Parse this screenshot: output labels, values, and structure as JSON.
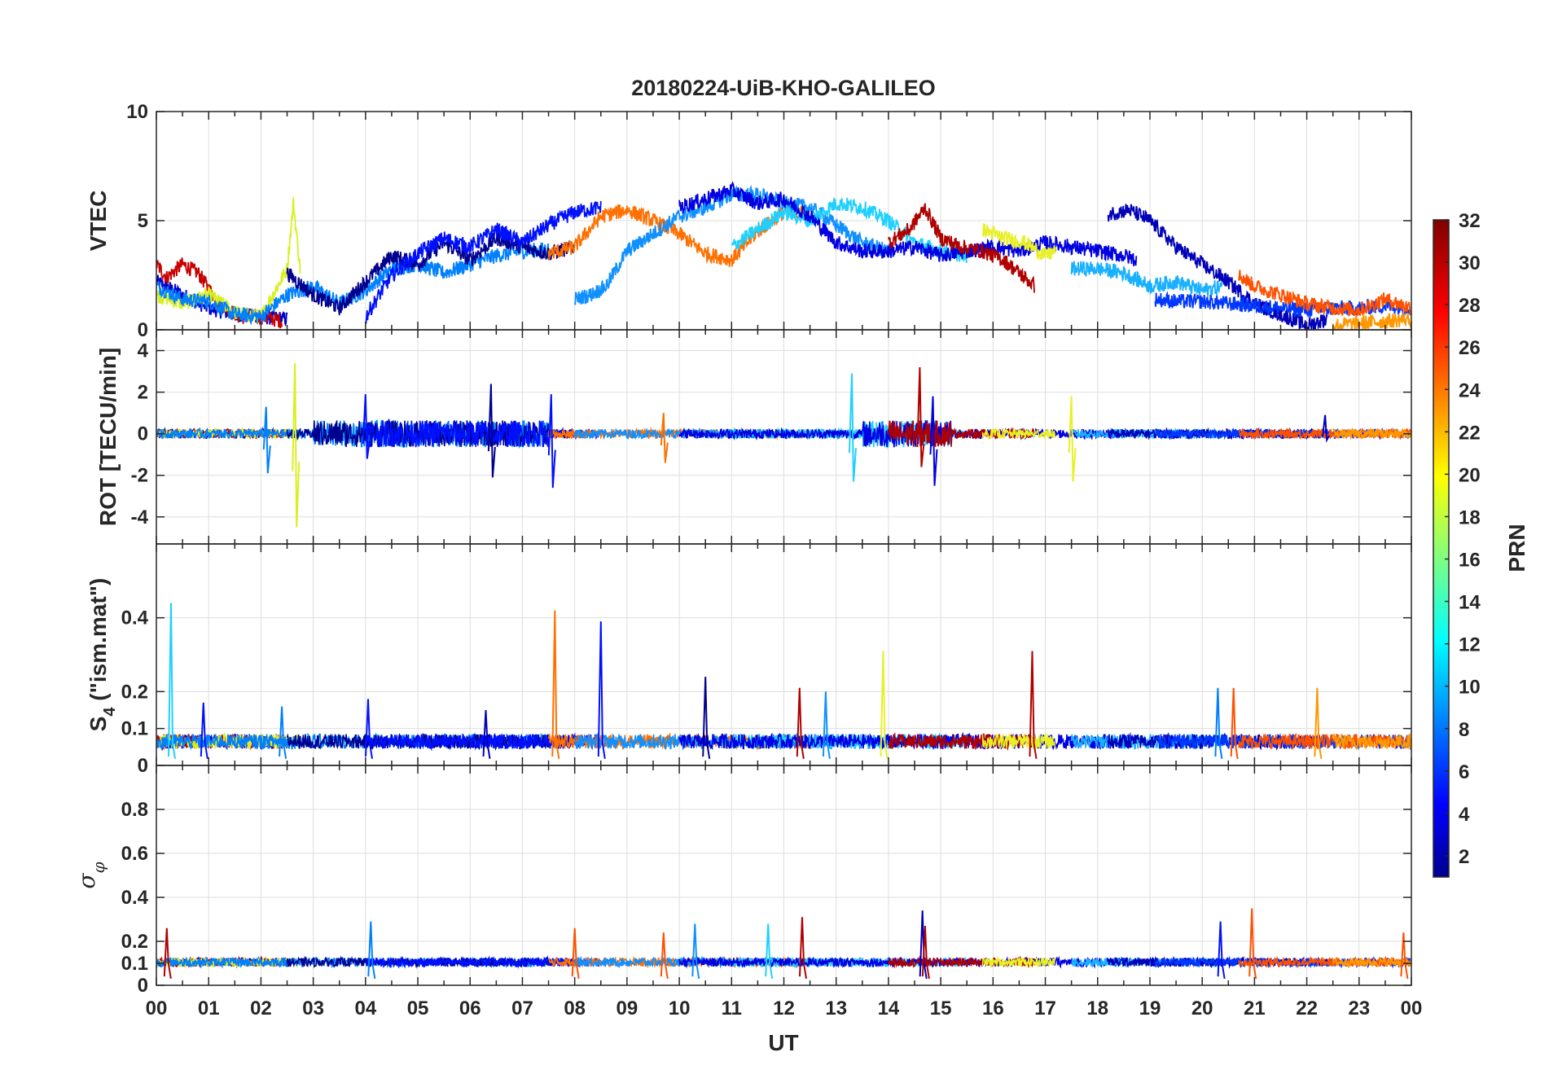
{
  "chart_data": {
    "type": "line",
    "title": "20180224-UiB-KHO-GALILEO",
    "xlabel": "UT",
    "x_tick_labels": [
      "00",
      "01",
      "02",
      "03",
      "04",
      "05",
      "06",
      "07",
      "08",
      "09",
      "10",
      "11",
      "12",
      "13",
      "14",
      "15",
      "16",
      "17",
      "18",
      "19",
      "20",
      "21",
      "22",
      "23",
      "00"
    ],
    "xlim_hours": [
      0,
      24
    ],
    "colorbar": {
      "label": "PRN",
      "range": [
        1,
        32
      ],
      "tick_labels": [
        "2",
        "4",
        "6",
        "8",
        "10",
        "12",
        "14",
        "16",
        "18",
        "20",
        "22",
        "24",
        "26",
        "28",
        "30",
        "32"
      ],
      "colormap": "jet"
    },
    "panels": [
      {
        "id": "vtec",
        "ylabel": "VTEC",
        "ylim": [
          0,
          10
        ],
        "tick_labels": [
          "0",
          "5",
          "10"
        ],
        "tick_values": [
          0,
          5,
          10
        ],
        "series": [
          {
            "prn": 3,
            "color": "#0000c8",
            "x": [
              0,
              0.5,
              1,
              1.5,
              2,
              2.5
            ],
            "y": [
              2.2,
              1.6,
              1.0,
              0.7,
              0.6,
              0.5
            ]
          },
          {
            "prn": 30,
            "color": "#c80000",
            "x": [
              0,
              0.2,
              0.5,
              0.8,
              1.2,
              1.6,
              2.0,
              2.4
            ],
            "y": [
              3.0,
              2.4,
              3.0,
              2.6,
              1.2,
              0.6,
              0.6,
              0.4
            ]
          },
          {
            "prn": 19,
            "color": "#d8f020",
            "x": [
              0,
              0.5,
              1.0,
              1.5,
              2.0,
              2.5,
              2.62,
              2.75
            ],
            "y": [
              1.6,
              1.2,
              1.6,
              0.8,
              0.6,
              2.8,
              5.8,
              2.8
            ]
          },
          {
            "prn": 10,
            "color": "#0080ff",
            "x": [
              0,
              0.5,
              1,
              1.5,
              2,
              2.5,
              3,
              3.5,
              4,
              4.5,
              5,
              5.5,
              6,
              6.5,
              7,
              7.5
            ],
            "y": [
              2.0,
              1.4,
              1.3,
              0.7,
              0.6,
              1.6,
              2.0,
              1.2,
              1.8,
              2.8,
              3.0,
              2.6,
              3.0,
              3.4,
              3.6,
              3.7
            ]
          },
          {
            "prn": 2,
            "color": "#00008f",
            "x": [
              2.5,
              3,
              3.5,
              4,
              4.5,
              5,
              5.5,
              6,
              6.5,
              7,
              7.5,
              8
            ],
            "y": [
              2.6,
              1.6,
              1.0,
              2.2,
              3.4,
              3.0,
              4.0,
              3.2,
              4.2,
              3.8,
              3.5,
              3.8
            ]
          },
          {
            "prn": 5,
            "color": "#0010ff",
            "x": [
              4.0,
              4.5,
              5,
              5.5,
              6,
              6.5,
              7,
              7.5,
              8,
              8.5
            ],
            "y": [
              0.6,
              2.5,
              3.5,
              4.2,
              3.8,
              4.6,
              4.0,
              4.8,
              5.4,
              5.6
            ]
          },
          {
            "prn": 24,
            "color": "#ff7000",
            "x": [
              7.5,
              8,
              8.5,
              9,
              9.5,
              10,
              10.5,
              11,
              11.5,
              12,
              12.5
            ],
            "y": [
              3.5,
              3.8,
              5.2,
              5.5,
              5.0,
              4.4,
              3.5,
              3.2,
              4.5,
              5.4,
              5.3
            ]
          },
          {
            "prn": 9,
            "color": "#1090ff",
            "x": [
              8.0,
              8.3,
              8.6,
              9,
              9.5,
              10,
              10.5,
              11,
              11.5,
              12,
              12.5,
              13,
              13.5,
              14
            ],
            "y": [
              1.4,
              1.6,
              2.0,
              3.6,
              4.4,
              5.2,
              5.6,
              6.2,
              6.2,
              5.8,
              5.6,
              4.8,
              4.0,
              3.6
            ]
          },
          {
            "prn": 12,
            "color": "#20d0ff",
            "x": [
              11.0,
              11.5,
              12,
              12.5,
              13,
              13.5,
              14,
              14.5,
              15,
              15.5
            ],
            "y": [
              3.8,
              4.6,
              5.4,
              5.0,
              5.8,
              5.6,
              5.0,
              4.0,
              3.6,
              3.4
            ]
          },
          {
            "prn": 4,
            "color": "#0000e0",
            "x": [
              10,
              10.5,
              11,
              11.5,
              12,
              12.5,
              13,
              13.5,
              14,
              14.5,
              15,
              15.5,
              16,
              16.5,
              17,
              17.5,
              18,
              18.5,
              18.75
            ],
            "y": [
              5.6,
              6.0,
              6.4,
              5.8,
              6.0,
              5.2,
              4.0,
              3.6,
              3.6,
              3.8,
              3.4,
              3.6,
              3.8,
              3.6,
              4.0,
              3.8,
              3.6,
              3.4,
              3.2
            ]
          },
          {
            "prn": 31,
            "color": "#b00000",
            "x": [
              14,
              14.4,
              14.7,
              15,
              15.4,
              15.8,
              16.2,
              16.5,
              16.8
            ],
            "y": [
              4.0,
              4.6,
              5.6,
              4.2,
              3.8,
              3.6,
              3.2,
              2.6,
              2.0
            ]
          },
          {
            "prn": 20,
            "color": "#e8f028",
            "x": [
              15.8,
              16.2,
              16.6,
              17.0,
              17.2
            ],
            "y": [
              4.6,
              4.2,
              4.0,
              3.4,
              3.6
            ]
          },
          {
            "prn": 11,
            "color": "#18b0ff",
            "x": [
              17.5,
              18,
              18.5,
              19,
              19.5,
              20,
              20.4
            ],
            "y": [
              2.8,
              2.8,
              2.6,
              2.0,
              2.2,
              1.8,
              2.0
            ]
          },
          {
            "prn": 3,
            "color": "#0000b8",
            "x": [
              18.2,
              18.6,
              19,
              19.5,
              20,
              20.5,
              21,
              21.5,
              22,
              22.4
            ],
            "y": [
              5.3,
              5.5,
              5.0,
              3.8,
              3.0,
              2.2,
              1.2,
              0.7,
              0.2,
              0.5
            ]
          },
          {
            "prn": 7,
            "color": "#0038ff",
            "x": [
              19.1,
              19.5,
              20,
              20.5,
              21,
              21.5,
              22,
              22.5,
              23,
              23.5,
              24
            ],
            "y": [
              1.4,
              1.3,
              1.3,
              1.2,
              1.1,
              1.0,
              0.9,
              1.0,
              1.0,
              1.1,
              1.0
            ]
          },
          {
            "prn": 25,
            "color": "#ff5000",
            "x": [
              20.7,
              21,
              21.5,
              22,
              22.5,
              23,
              23.5,
              24
            ],
            "y": [
              2.5,
              2.0,
              1.6,
              1.2,
              1.0,
              0.9,
              1.4,
              1.0
            ]
          },
          {
            "prn": 22,
            "color": "#ff9800",
            "x": [
              22.5,
              23,
              23.5,
              24
            ],
            "y": [
              0.2,
              0.3,
              0.4,
              0.5
            ]
          }
        ]
      },
      {
        "id": "rot",
        "ylabel": "ROT [TECU/min]",
        "ylim": [
          -5.3,
          5
        ],
        "tick_labels": [
          "-4",
          "-2",
          "0",
          "2",
          "4"
        ],
        "tick_values": [
          -4,
          -2,
          0,
          2,
          4
        ],
        "spikes": [
          {
            "prn": 19,
            "color": "#d8f020",
            "hour": 2.65,
            "min": -4.5,
            "max": 3.4
          },
          {
            "prn": 10,
            "color": "#0080ff",
            "hour": 2.1,
            "min": -1.9,
            "max": 1.3
          },
          {
            "prn": 5,
            "color": "#0010ff",
            "hour": 4.0,
            "min": -1.2,
            "max": 1.9
          },
          {
            "prn": 2,
            "color": "#00008f",
            "hour": 6.4,
            "min": -2.1,
            "max": 2.4
          },
          {
            "prn": 5,
            "color": "#0010ff",
            "hour": 7.55,
            "min": -2.6,
            "max": 1.9
          },
          {
            "prn": 24,
            "color": "#ff7000",
            "hour": 9.7,
            "min": -1.4,
            "max": 1.0
          },
          {
            "prn": 12,
            "color": "#20d0ff",
            "hour": 13.3,
            "min": -2.3,
            "max": 2.9
          },
          {
            "prn": 31,
            "color": "#b00000",
            "hour": 14.6,
            "min": -1.6,
            "max": 3.2
          },
          {
            "prn": 4,
            "color": "#0000e0",
            "hour": 14.85,
            "min": -2.5,
            "max": 1.8
          },
          {
            "prn": 20,
            "color": "#e8f028",
            "hour": 17.5,
            "min": -2.3,
            "max": 1.8
          },
          {
            "prn": 3,
            "color": "#0000b8",
            "hour": 22.35,
            "min": -0.3,
            "max": 0.9
          }
        ]
      },
      {
        "id": "s4",
        "ylabel": "S4 (\"ism.mat\")",
        "ylabel_main": "S",
        "ylabel_sub": "4",
        "ylabel_rest": " (\"ism.mat\")",
        "ylim": [
          0,
          0.6
        ],
        "tick_labels": [
          "0",
          "0.1",
          "0.2",
          "0.4"
        ],
        "tick_values": [
          0,
          0.1,
          0.2,
          0.4
        ],
        "spikes": [
          {
            "prn": 12,
            "color": "#20d0ff",
            "hour": 0.28,
            "max": 0.44
          },
          {
            "prn": 5,
            "color": "#0010ff",
            "hour": 0.9,
            "max": 0.17
          },
          {
            "prn": 10,
            "color": "#0080ff",
            "hour": 2.4,
            "max": 0.16
          },
          {
            "prn": 5,
            "color": "#0010ff",
            "hour": 4.05,
            "max": 0.18
          },
          {
            "prn": 3,
            "color": "#0000b8",
            "hour": 6.3,
            "max": 0.15
          },
          {
            "prn": 24,
            "color": "#ff7000",
            "hour": 7.62,
            "max": 0.42
          },
          {
            "prn": 5,
            "color": "#0010ff",
            "hour": 8.5,
            "max": 0.39
          },
          {
            "prn": 2,
            "color": "#00008f",
            "hour": 10.5,
            "max": 0.24
          },
          {
            "prn": 31,
            "color": "#b00000",
            "hour": 12.3,
            "max": 0.21
          },
          {
            "prn": 9,
            "color": "#1090ff",
            "hour": 12.8,
            "max": 0.2
          },
          {
            "prn": 20,
            "color": "#e8f028",
            "hour": 13.9,
            "max": 0.31
          },
          {
            "prn": 31,
            "color": "#b00000",
            "hour": 16.75,
            "max": 0.31
          },
          {
            "prn": 10,
            "color": "#0080ff",
            "hour": 20.3,
            "max": 0.21
          },
          {
            "prn": 25,
            "color": "#ff5000",
            "hour": 20.6,
            "max": 0.21
          },
          {
            "prn": 22,
            "color": "#ff9800",
            "hour": 22.2,
            "max": 0.21
          }
        ]
      },
      {
        "id": "sigma",
        "ylabel": "σφ",
        "ylabel_main": "σ",
        "ylabel_sub": "φ",
        "ylim": [
          0,
          1
        ],
        "tick_labels": [
          "0",
          "0.1",
          "0.2",
          "0.4",
          "0.6",
          "0.8"
        ],
        "tick_values": [
          0,
          0.1,
          0.2,
          0.4,
          0.6,
          0.8
        ],
        "spikes": [
          {
            "prn": 31,
            "color": "#b00000",
            "hour": 0.2,
            "max": 0.26
          },
          {
            "prn": 10,
            "color": "#0080ff",
            "hour": 4.1,
            "max": 0.29
          },
          {
            "prn": 25,
            "color": "#ff5000",
            "hour": 8.0,
            "max": 0.26
          },
          {
            "prn": 25,
            "color": "#ff5000",
            "hour": 9.7,
            "max": 0.24
          },
          {
            "prn": 9,
            "color": "#1090ff",
            "hour": 10.3,
            "max": 0.28
          },
          {
            "prn": 12,
            "color": "#20d0ff",
            "hour": 11.7,
            "max": 0.28
          },
          {
            "prn": 31,
            "color": "#b00000",
            "hour": 12.35,
            "max": 0.31
          },
          {
            "prn": 3,
            "color": "#0000b8",
            "hour": 14.65,
            "max": 0.34
          },
          {
            "prn": 31,
            "color": "#b00000",
            "hour": 14.7,
            "max": 0.27
          },
          {
            "prn": 5,
            "color": "#0010ff",
            "hour": 20.35,
            "max": 0.29
          },
          {
            "prn": 25,
            "color": "#ff5000",
            "hour": 20.95,
            "max": 0.35
          },
          {
            "prn": 25,
            "color": "#ff5000",
            "hour": 23.85,
            "max": 0.24
          }
        ]
      }
    ]
  }
}
